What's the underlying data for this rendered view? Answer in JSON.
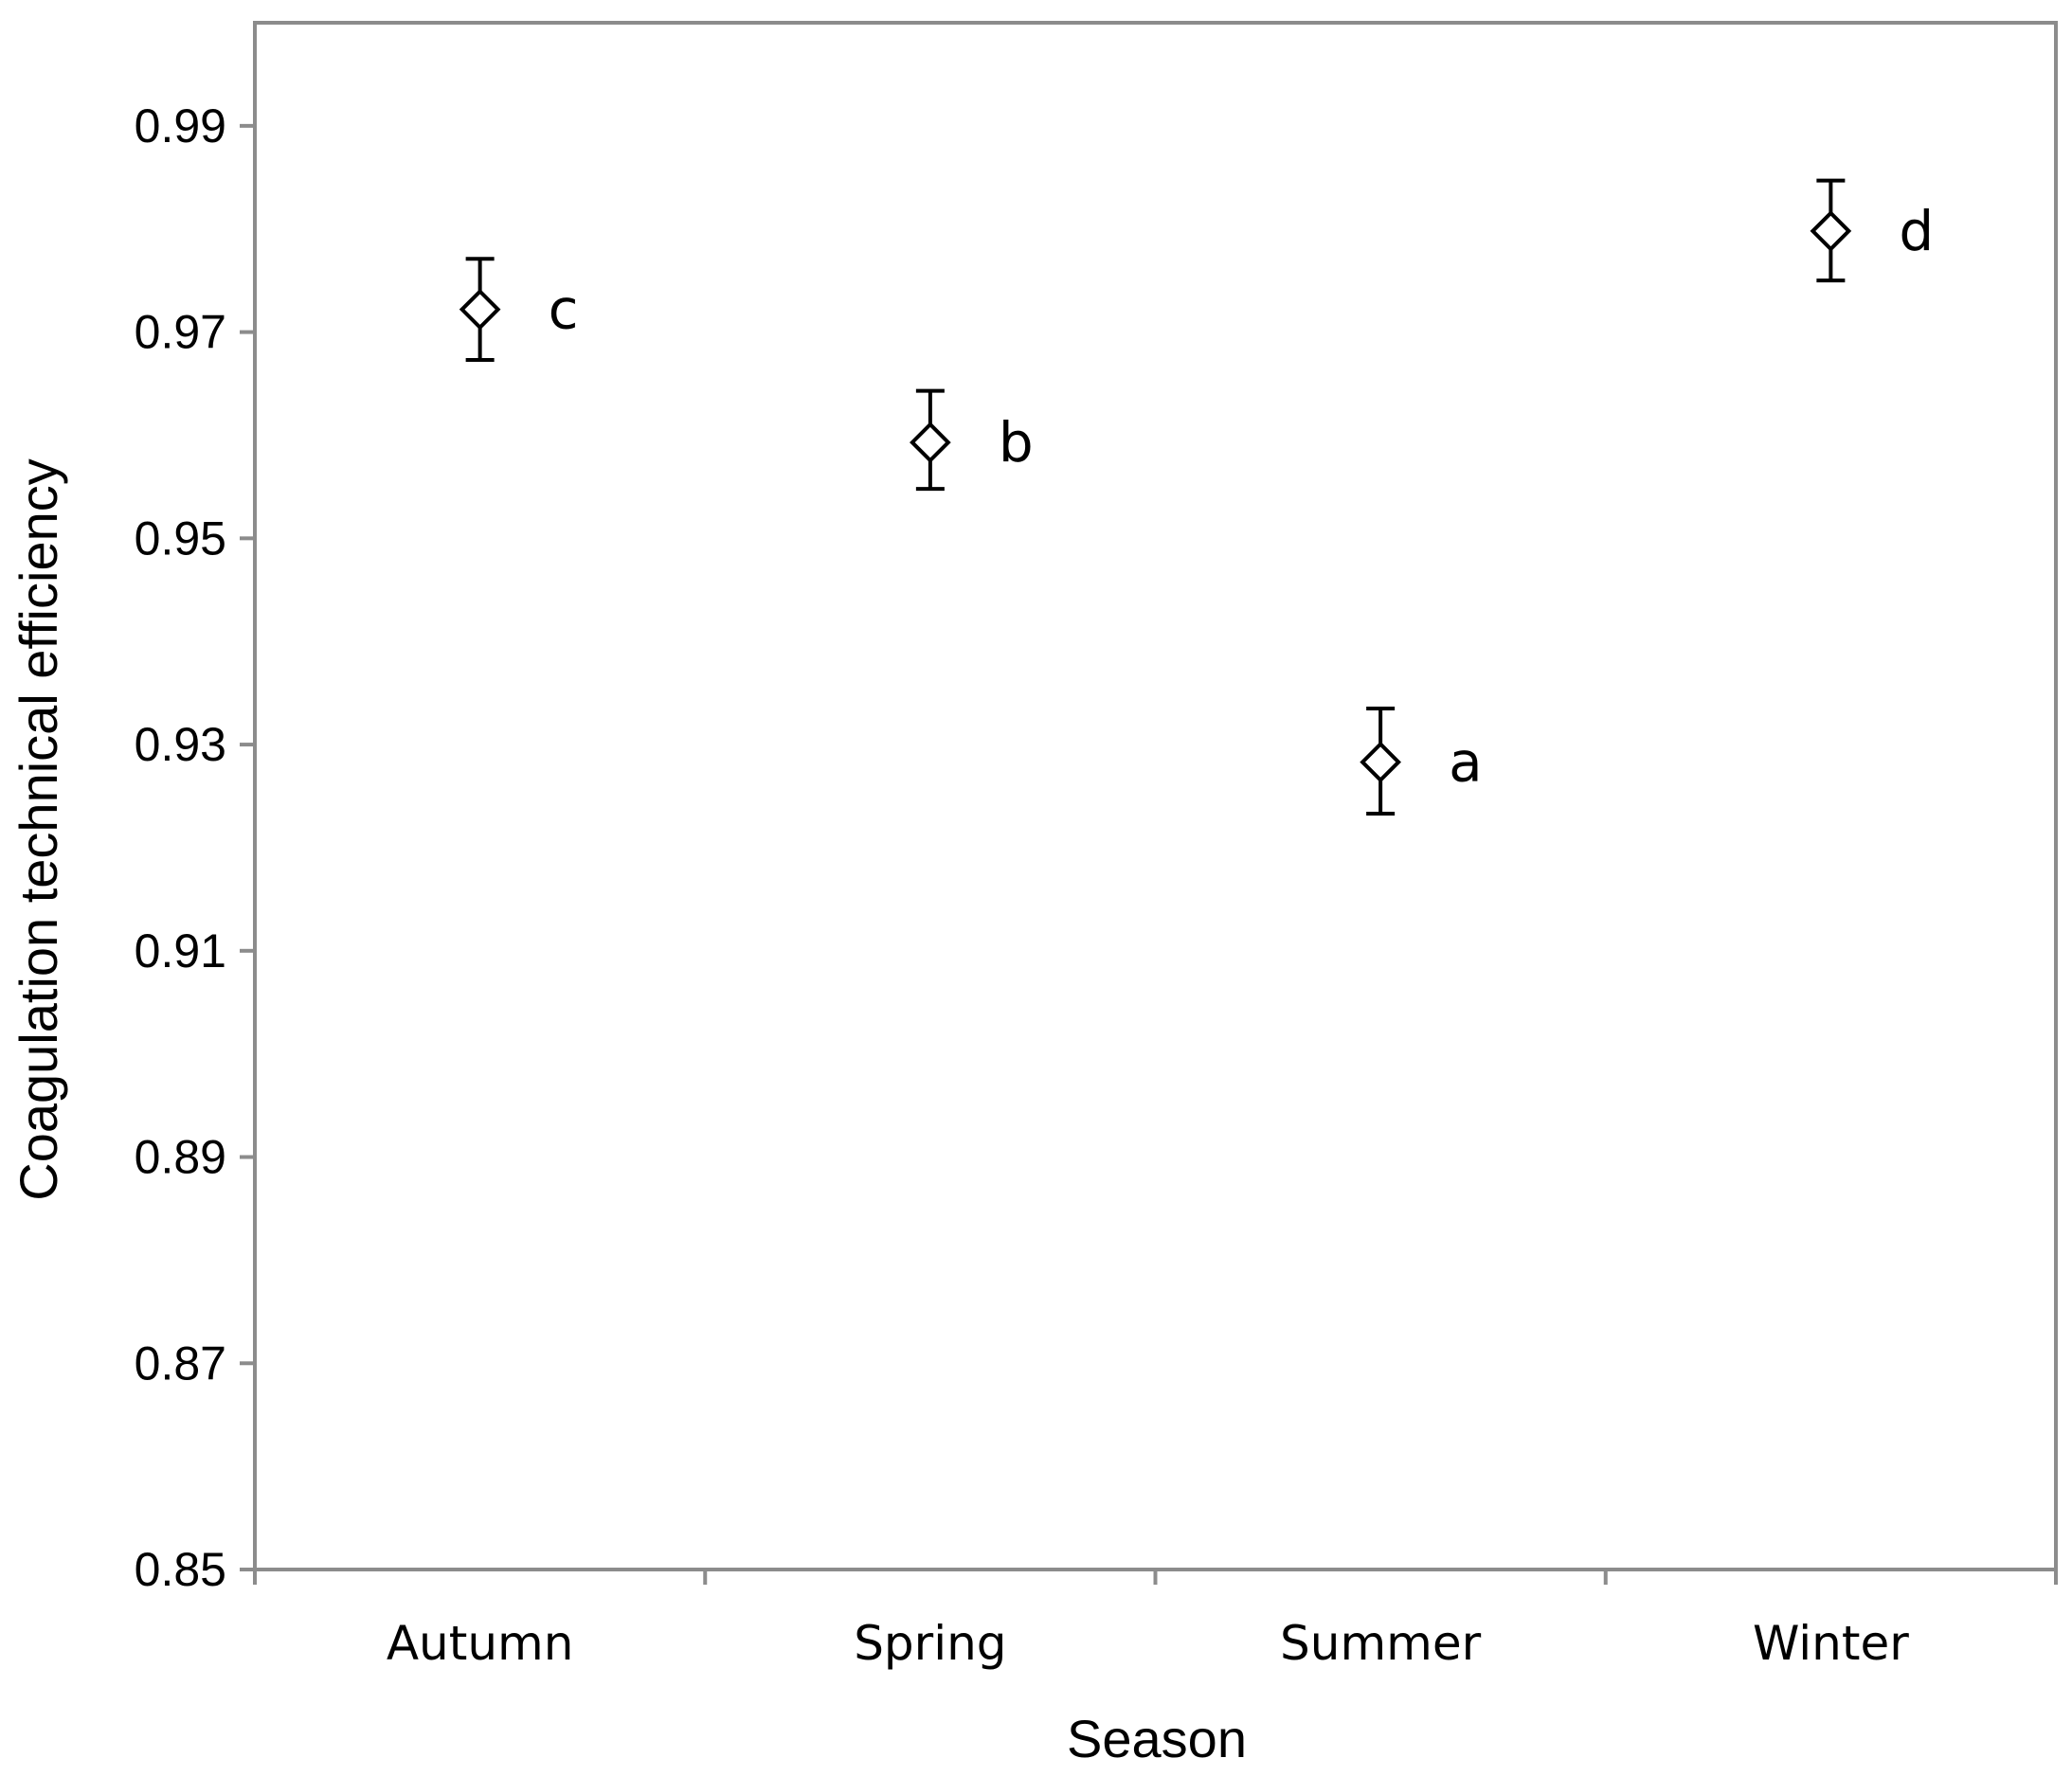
{
  "chart_data": {
    "type": "scatter",
    "categories": [
      "Autumn",
      "Spring",
      "Summer",
      "Winter"
    ],
    "values": [
      0.9722,
      0.9593,
      0.9283,
      0.9798
    ],
    "error_low": [
      0.9673,
      0.9548,
      0.9233,
      0.975
    ],
    "error_high": [
      0.9771,
      0.9643,
      0.9335,
      0.9847
    ],
    "annotations": [
      "c",
      "b",
      "a",
      "d"
    ],
    "ylim": [
      0.85,
      1.0
    ],
    "yticks": [
      0.85,
      0.87,
      0.89,
      0.91,
      0.93,
      0.95,
      0.97,
      0.99
    ],
    "ytick_labels": [
      "0.85",
      "0.87",
      "0.89",
      "0.91",
      "0.93",
      "0.95",
      "0.97",
      "0.99"
    ],
    "xlabel": "Season",
    "ylabel": "Coagulation technical efficiency",
    "grid": false,
    "axis_color": "#8c8c8c",
    "marker": "diamond-open",
    "marker_color": "#000000"
  }
}
